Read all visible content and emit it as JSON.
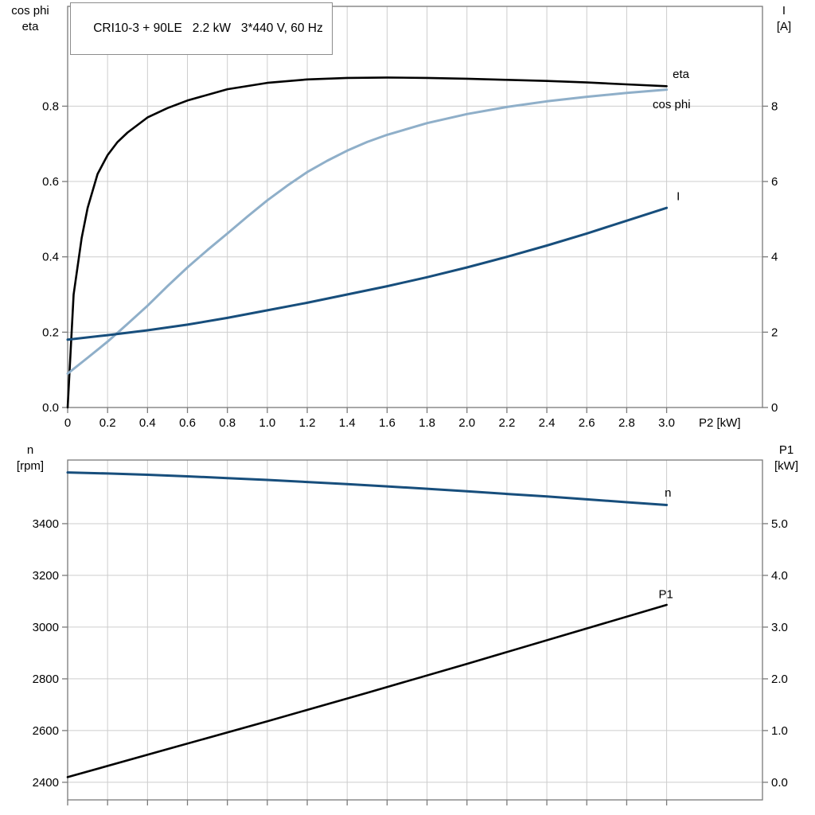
{
  "title_box": {
    "text": "CRI10-3 + 90LE   2.2 kW   3*440 V, 60 Hz"
  },
  "colors": {
    "grid": "#cdcdcd",
    "frame": "#7a7a7a",
    "eta": "#000000",
    "cos_phi": "#8fafc9",
    "current": "#174e7c",
    "speed": "#174e7c",
    "p1": "#000000"
  },
  "chart_data": [
    {
      "type": "line",
      "id": "motor-performance",
      "title": "CRI10-3 + 90LE   2.2 kW   3*440 V, 60 Hz",
      "grid": true,
      "x_axis": {
        "label": "P2 [kW]",
        "min": 0,
        "max": 3.48,
        "ticks": [
          0,
          0.2,
          0.4,
          0.6,
          0.8,
          1.0,
          1.2,
          1.4,
          1.6,
          1.8,
          2.0,
          2.2,
          2.4,
          2.6,
          2.8,
          3.0
        ],
        "tick_labels": [
          "0",
          "0.2",
          "0.4",
          "0.6",
          "0.8",
          "1.0",
          "1.2",
          "1.4",
          "1.6",
          "1.8",
          "2.0",
          "2.2",
          "2.4",
          "2.6",
          "2.8",
          "3.0"
        ],
        "show_tick_labels": true
      },
      "left_axis": {
        "label_lines": [
          "cos phi",
          "eta"
        ],
        "min": 0,
        "max": 1.065,
        "ticks": [
          0,
          0.2,
          0.4,
          0.6,
          0.8
        ],
        "tick_labels": [
          "0.0",
          "0.2",
          "0.4",
          "0.6",
          "0.8"
        ]
      },
      "right_axis": {
        "label_lines": [
          "I",
          "[A]"
        ],
        "min": 0,
        "max": 10.65,
        "ticks": [
          0,
          2,
          4,
          6,
          8
        ],
        "tick_labels": [
          "0",
          "2",
          "4",
          "6",
          "8"
        ]
      },
      "series": [
        {
          "name": "eta",
          "label": "eta",
          "axis": "left",
          "color": "#000000",
          "width": 2.6,
          "x": [
            0,
            0.03,
            0.07,
            0.1,
            0.15,
            0.2,
            0.25,
            0.3,
            0.4,
            0.5,
            0.6,
            0.8,
            1.0,
            1.2,
            1.4,
            1.6,
            1.8,
            2.0,
            2.2,
            2.4,
            2.6,
            2.8,
            3.0
          ],
          "y": [
            0,
            0.3,
            0.45,
            0.53,
            0.62,
            0.67,
            0.705,
            0.73,
            0.77,
            0.795,
            0.815,
            0.845,
            0.862,
            0.871,
            0.875,
            0.876,
            0.875,
            0.873,
            0.87,
            0.867,
            0.863,
            0.858,
            0.853
          ],
          "label_at": {
            "x": 3.03,
            "y": 0.875
          }
        },
        {
          "name": "cos-phi",
          "label": "cos phi",
          "axis": "left",
          "color": "#8fafc9",
          "width": 3,
          "x": [
            0,
            0.1,
            0.2,
            0.3,
            0.4,
            0.5,
            0.6,
            0.7,
            0.8,
            0.9,
            1.0,
            1.1,
            1.2,
            1.3,
            1.4,
            1.5,
            1.6,
            1.8,
            2.0,
            2.2,
            2.4,
            2.6,
            2.8,
            3.0
          ],
          "y": [
            0.09,
            0.132,
            0.175,
            0.222,
            0.27,
            0.322,
            0.372,
            0.418,
            0.462,
            0.507,
            0.55,
            0.589,
            0.625,
            0.655,
            0.682,
            0.705,
            0.724,
            0.755,
            0.779,
            0.798,
            0.813,
            0.825,
            0.835,
            0.844
          ],
          "label_at": {
            "x": 2.93,
            "y": 0.795
          }
        },
        {
          "name": "current",
          "label": "I",
          "axis": "right",
          "color": "#174e7c",
          "width": 3,
          "x": [
            0,
            0.2,
            0.4,
            0.6,
            0.8,
            1.0,
            1.2,
            1.4,
            1.6,
            1.8,
            2.0,
            2.2,
            2.4,
            2.6,
            2.8,
            3.0
          ],
          "y": [
            1.8,
            1.92,
            2.05,
            2.2,
            2.38,
            2.58,
            2.78,
            3.0,
            3.22,
            3.46,
            3.72,
            4.0,
            4.3,
            4.62,
            4.96,
            5.3
          ],
          "label_at": {
            "x": 3.05,
            "y": 5.5
          }
        }
      ]
    },
    {
      "type": "line",
      "id": "speed-and-input-power",
      "grid": true,
      "x_axis": {
        "label": "",
        "min": 0,
        "max": 3.48,
        "ticks": [
          0,
          0.2,
          0.4,
          0.6,
          0.8,
          1.0,
          1.2,
          1.4,
          1.6,
          1.8,
          2.0,
          2.2,
          2.4,
          2.6,
          2.8,
          3.0
        ],
        "tick_labels": [],
        "show_tick_labels": false
      },
      "left_axis": {
        "label_lines": [
          "n",
          "[rpm]"
        ],
        "min": 2332,
        "max": 3646,
        "ticks": [
          2400,
          2600,
          2800,
          3000,
          3200,
          3400
        ],
        "tick_labels": [
          "2400",
          "2600",
          "2800",
          "3000",
          "3200",
          "3400"
        ]
      },
      "right_axis": {
        "label_lines": [
          "P1",
          "[kW]"
        ],
        "min": -0.34,
        "max": 6.23,
        "ticks": [
          0,
          1,
          2,
          3,
          4,
          5
        ],
        "tick_labels": [
          "0.0",
          "1.0",
          "2.0",
          "3.0",
          "4.0",
          "5.0"
        ]
      },
      "series": [
        {
          "name": "n",
          "label": "n",
          "axis": "left",
          "color": "#174e7c",
          "width": 3,
          "x": [
            0,
            0.2,
            0.4,
            0.6,
            0.8,
            1.0,
            1.2,
            1.4,
            1.6,
            1.8,
            2.0,
            2.2,
            2.4,
            2.6,
            2.8,
            3.0
          ],
          "y": [
            3598,
            3594,
            3589,
            3583,
            3576,
            3569,
            3561,
            3553,
            3544,
            3535,
            3525,
            3515,
            3505,
            3494,
            3483,
            3472
          ],
          "label_at": {
            "x": 2.99,
            "y": 3505
          }
        },
        {
          "name": "p1",
          "label": "P1",
          "axis": "right",
          "color": "#000000",
          "width": 2.6,
          "x": [
            0,
            0.5,
            1.0,
            1.5,
            2.0,
            2.5,
            3.0
          ],
          "y": [
            0.1,
            0.64,
            1.18,
            1.73,
            2.29,
            2.86,
            3.43
          ],
          "label_at": {
            "x": 2.96,
            "y": 3.56
          }
        }
      ]
    }
  ]
}
